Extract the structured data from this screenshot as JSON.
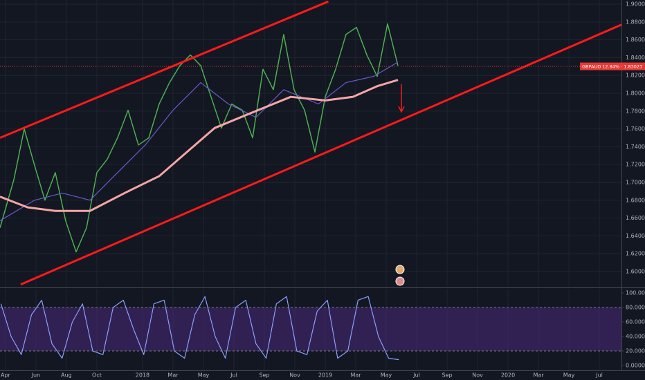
{
  "chart_data": [
    {
      "type": "line",
      "xlim": [
        -0.36,
        40.45
      ],
      "xticks": [
        {
          "value": 0,
          "label": "Apr"
        },
        {
          "value": 2,
          "label": "Jun"
        },
        {
          "value": 4,
          "label": "Aug"
        },
        {
          "value": 6,
          "label": "Oct"
        },
        {
          "value": 9,
          "label": "2018"
        },
        {
          "value": 11,
          "label": "Mar"
        },
        {
          "value": 13,
          "label": "May"
        },
        {
          "value": 15,
          "label": "Jul"
        },
        {
          "value": 17,
          "label": "Sep"
        },
        {
          "value": 19,
          "label": "Nov"
        },
        {
          "value": 21,
          "label": "2019"
        },
        {
          "value": 23,
          "label": "Mar"
        },
        {
          "value": 25,
          "label": "May"
        },
        {
          "value": 27,
          "label": "Jul"
        },
        {
          "value": 29,
          "label": "Sep"
        },
        {
          "value": 31,
          "label": "Nov"
        },
        {
          "value": 33,
          "label": "2020"
        },
        {
          "value": 35,
          "label": "Mar"
        },
        {
          "value": 37,
          "label": "May"
        },
        {
          "value": 39,
          "label": "Jul"
        }
      ],
      "ylim": [
        1.5829,
        1.9047
      ],
      "yticks": [
        {
          "value": 1.6,
          "label": "1.60000"
        },
        {
          "value": 1.62,
          "label": "1.62000"
        },
        {
          "value": 1.64,
          "label": "1.64000"
        },
        {
          "value": 1.66,
          "label": "1.66000"
        },
        {
          "value": 1.68,
          "label": "1.68000"
        },
        {
          "value": 1.7,
          "label": "1.70000"
        },
        {
          "value": 1.72,
          "label": "1.72000"
        },
        {
          "value": 1.74,
          "label": "1.74000"
        },
        {
          "value": 1.76,
          "label": "1.76000"
        },
        {
          "value": 1.78,
          "label": "1.78000"
        },
        {
          "value": 1.8,
          "label": "1.80000"
        },
        {
          "value": 1.82,
          "label": "1.82000"
        },
        {
          "value": 1.84,
          "label": "1.84000"
        },
        {
          "value": 1.86,
          "label": "1.86000"
        },
        {
          "value": 1.88,
          "label": "1.88000"
        },
        {
          "value": 1.9,
          "label": "1.90000"
        }
      ],
      "grid": true,
      "series": [
        {
          "color": "#4caf50",
          "width": 1.5,
          "x": [
            -0.36,
            0.55,
            1.23,
            1.91,
            2.59,
            3.27,
            3.95,
            4.64,
            5.32,
            6.0,
            6.68,
            7.36,
            8.05,
            8.73,
            9.41,
            10.09,
            10.77,
            11.45,
            12.14,
            12.82,
            13.5,
            14.18,
            14.86,
            15.55,
            16.23,
            16.91,
            17.59,
            18.27,
            18.95,
            19.64,
            20.32,
            21.0,
            21.68,
            22.36,
            23.05,
            23.73,
            24.41,
            25.09,
            25.77
          ],
          "values": [
            1.649,
            1.703,
            1.76,
            1.719,
            1.68,
            1.711,
            1.657,
            1.622,
            1.649,
            1.711,
            1.726,
            1.75,
            1.781,
            1.742,
            1.75,
            1.788,
            1.812,
            1.831,
            1.843,
            1.831,
            1.796,
            1.761,
            1.788,
            1.781,
            1.75,
            1.827,
            1.804,
            1.866,
            1.804,
            1.781,
            1.734,
            1.796,
            1.827,
            1.866,
            1.874,
            1.843,
            1.819,
            1.878,
            1.831
          ]
        },
        {
          "color": "#6a5acd",
          "width": 1.2,
          "x": [
            -0.36,
            1.91,
            3.73,
            5.55,
            7.36,
            9.18,
            11.0,
            12.82,
            14.64,
            16.45,
            18.27,
            20.55,
            22.36,
            24.18,
            25.77
          ],
          "values": [
            1.657,
            1.68,
            1.688,
            1.68,
            1.711,
            1.742,
            1.781,
            1.812,
            1.788,
            1.773,
            1.804,
            1.788,
            1.812,
            1.819,
            1.835
          ]
        },
        {
          "color": "#f4a6a6",
          "width": 3,
          "x": [
            -0.36,
            1.45,
            3.27,
            5.55,
            7.82,
            10.09,
            11.91,
            13.73,
            16.0,
            18.73,
            21.0,
            22.82,
            24.41,
            25.77
          ],
          "values": [
            1.684,
            1.672,
            1.668,
            1.668,
            1.688,
            1.707,
            1.734,
            1.761,
            1.777,
            1.796,
            1.792,
            1.796,
            1.808,
            1.815
          ]
        }
      ],
      "trendlines": [
        {
          "color": "#ff1a1a",
          "x": [
            -0.36,
            21.2
          ],
          "values": [
            1.75,
            1.903
          ]
        },
        {
          "color": "#ff1a1a",
          "x": [
            1.0,
            40.45
          ],
          "values": [
            1.5854,
            1.877
          ]
        }
      ],
      "price_line": {
        "value": 1.83023,
        "label": "GBPAUD 12.84% · 1.83023",
        "color": "#e53935"
      }
    },
    {
      "type": "line",
      "xlim": [
        -0.36,
        40.45
      ],
      "ylim": [
        -5.7,
        105.7
      ],
      "yticks": [
        {
          "value": 0,
          "label": "0.0000"
        },
        {
          "value": 20,
          "label": "20.0000"
        },
        {
          "value": 40,
          "label": "40.0000"
        },
        {
          "value": 60,
          "label": "60.0000"
        },
        {
          "value": 80,
          "label": "80.0000"
        },
        {
          "value": 100,
          "label": "100.0000"
        }
      ],
      "band": [
        20,
        80
      ],
      "band_color": "#4a2a7a",
      "series": [
        {
          "color": "#8c9eff",
          "width": 1.2,
          "x": [
            -0.3,
            0.37,
            1.04,
            1.71,
            2.38,
            3.05,
            3.72,
            4.39,
            5.06,
            5.73,
            6.4,
            7.07,
            7.74,
            8.41,
            9.08,
            9.75,
            10.42,
            11.09,
            11.76,
            12.43,
            13.1,
            13.77,
            14.44,
            15.11,
            15.78,
            16.45,
            17.12,
            17.79,
            18.46,
            19.13,
            19.8,
            20.47,
            21.14,
            21.81,
            22.48,
            23.15,
            23.82,
            24.49,
            25.16,
            25.83
          ],
          "values": [
            85,
            40,
            15,
            70,
            90,
            30,
            10,
            60,
            85,
            20,
            15,
            80,
            90,
            50,
            15,
            85,
            90,
            20,
            10,
            70,
            95,
            40,
            10,
            80,
            90,
            30,
            10,
            85,
            95,
            20,
            15,
            75,
            90,
            10,
            20,
            90,
            95,
            40,
            10,
            8
          ]
        }
      ]
    }
  ]
}
